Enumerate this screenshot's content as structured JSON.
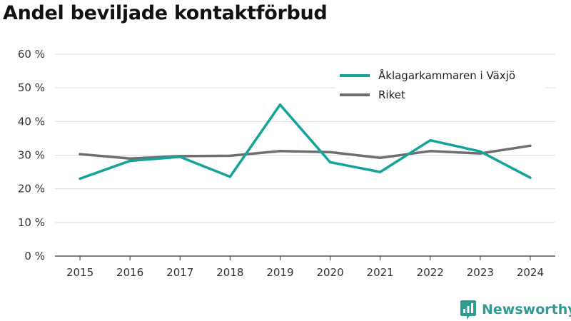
{
  "title": "Andel beviljade kontaktförbud",
  "brand": {
    "name": "Newsworthy",
    "icon": "newsworthy-logo-icon"
  },
  "chart_data": {
    "type": "line",
    "title": "Andel beviljade kontaktförbud",
    "xlabel": "",
    "ylabel": "",
    "categories": [
      "2015",
      "2016",
      "2017",
      "2018",
      "2019",
      "2020",
      "2021",
      "2022",
      "2023",
      "2024"
    ],
    "series": [
      {
        "name": "Åklagarkammaren i Växjö",
        "color": "#12a39a",
        "values": [
          23.0,
          28.3,
          29.5,
          23.6,
          45.0,
          27.9,
          25.0,
          34.4,
          31.1,
          23.3
        ]
      },
      {
        "name": "Riket",
        "color": "#6e6e72",
        "values": [
          30.3,
          29.0,
          29.7,
          29.8,
          31.2,
          30.9,
          29.2,
          31.2,
          30.5,
          32.8
        ]
      }
    ],
    "ylim": [
      0,
      60
    ],
    "yticks": [
      0,
      10,
      20,
      30,
      40,
      50,
      60
    ],
    "ytick_labels": [
      "0 %",
      "10 %",
      "20 %",
      "30 %",
      "40 %",
      "50 %",
      "60 %"
    ],
    "grid": true,
    "legend_position": "top-right"
  }
}
